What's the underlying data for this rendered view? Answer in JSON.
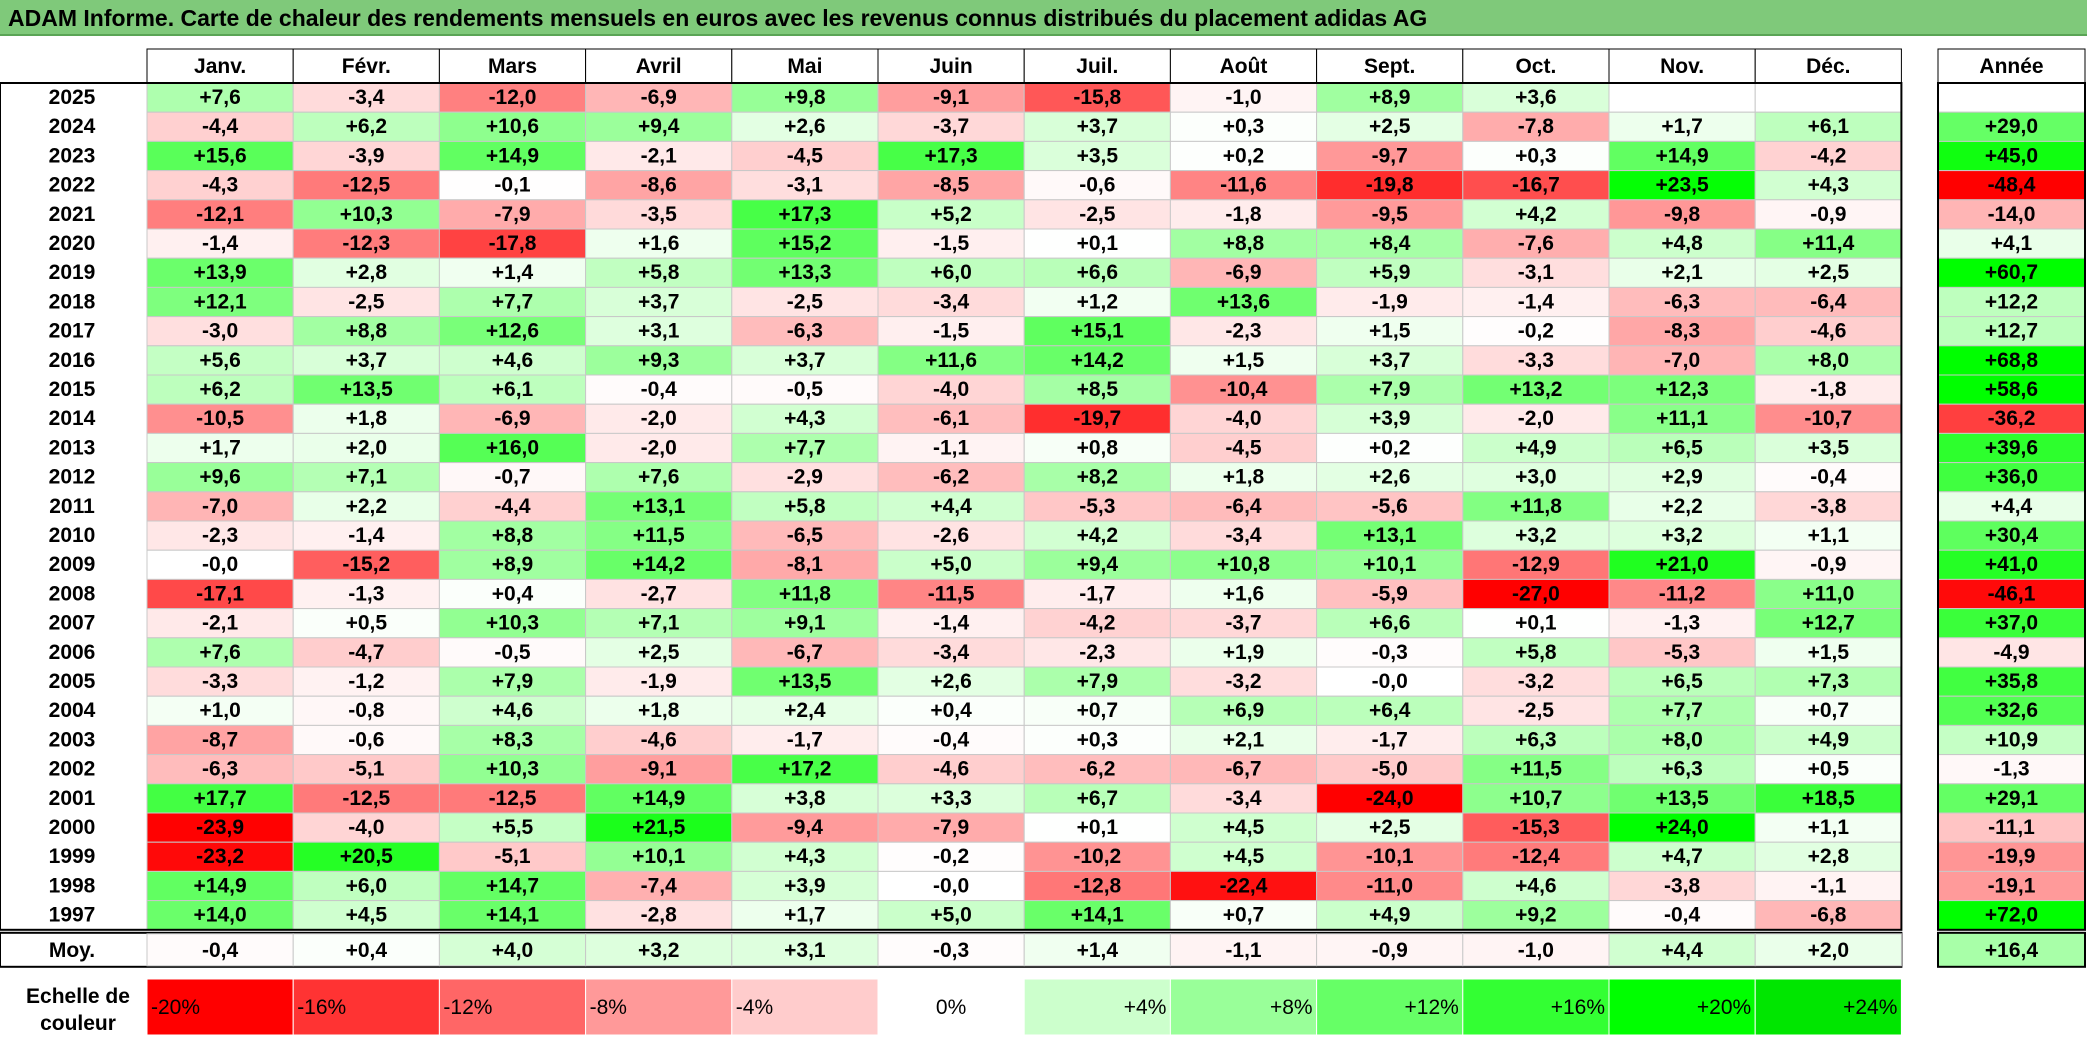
{
  "title": "ADAM Informe. Carte de chaleur des rendements mensuels en euros avec les revenus connus distribués du placement adidas AG",
  "chart_data": {
    "type": "heatmap",
    "title": "ADAM Informe. Carte de chaleur des rendements mensuels en euros avec les revenus connus distribués du placement adidas AG",
    "columns": [
      "Janv.",
      "Févr.",
      "Mars",
      "Avril",
      "Mai",
      "Juin",
      "Juil.",
      "Août",
      "Sept.",
      "Oct.",
      "Nov.",
      "Déc."
    ],
    "year_column_label": "Année",
    "rows": [
      {
        "year": "2025",
        "values": [
          "+7,6",
          "-3,4",
          "-12,0",
          "-6,9",
          "+9,8",
          "-9,1",
          "-15,8",
          "-1,0",
          "+8,9",
          "+3,6",
          "",
          ""
        ],
        "annual": ""
      },
      {
        "year": "2024",
        "values": [
          "-4,4",
          "+6,2",
          "+10,6",
          "+9,4",
          "+2,6",
          "-3,7",
          "+3,7",
          "+0,3",
          "+2,5",
          "-7,8",
          "+1,7",
          "+6,1"
        ],
        "annual": "+29,0"
      },
      {
        "year": "2023",
        "values": [
          "+15,6",
          "-3,9",
          "+14,9",
          "-2,1",
          "-4,5",
          "+17,3",
          "+3,5",
          "+0,2",
          "-9,7",
          "+0,3",
          "+14,9",
          "-4,2"
        ],
        "annual": "+45,0"
      },
      {
        "year": "2022",
        "values": [
          "-4,3",
          "-12,5",
          "-0,1",
          "-8,6",
          "-3,1",
          "-8,5",
          "-0,6",
          "-11,6",
          "-19,8",
          "-16,7",
          "+23,5",
          "+4,3"
        ],
        "annual": "-48,4"
      },
      {
        "year": "2021",
        "values": [
          "-12,1",
          "+10,3",
          "-7,9",
          "-3,5",
          "+17,3",
          "+5,2",
          "-2,5",
          "-1,8",
          "-9,5",
          "+4,2",
          "-9,8",
          "-0,9"
        ],
        "annual": "-14,0"
      },
      {
        "year": "2020",
        "values": [
          "-1,4",
          "-12,3",
          "-17,8",
          "+1,6",
          "+15,2",
          "-1,5",
          "+0,1",
          "+8,8",
          "+8,4",
          "-7,6",
          "+4,8",
          "+11,4"
        ],
        "annual": "+4,1"
      },
      {
        "year": "2019",
        "values": [
          "+13,9",
          "+2,8",
          "+1,4",
          "+5,8",
          "+13,3",
          "+6,0",
          "+6,6",
          "-6,9",
          "+5,9",
          "-3,1",
          "+2,1",
          "+2,5"
        ],
        "annual": "+60,7"
      },
      {
        "year": "2018",
        "values": [
          "+12,1",
          "-2,5",
          "+7,7",
          "+3,7",
          "-2,5",
          "-3,4",
          "+1,2",
          "+13,6",
          "-1,9",
          "-1,4",
          "-6,3",
          "-6,4"
        ],
        "annual": "+12,2"
      },
      {
        "year": "2017",
        "values": [
          "-3,0",
          "+8,8",
          "+12,6",
          "+3,1",
          "-6,3",
          "-1,5",
          "+15,1",
          "-2,3",
          "+1,5",
          "-0,2",
          "-8,3",
          "-4,6"
        ],
        "annual": "+12,7"
      },
      {
        "year": "2016",
        "values": [
          "+5,6",
          "+3,7",
          "+4,6",
          "+9,3",
          "+3,7",
          "+11,6",
          "+14,2",
          "+1,5",
          "+3,7",
          "-3,3",
          "-7,0",
          "+8,0"
        ],
        "annual": "+68,8"
      },
      {
        "year": "2015",
        "values": [
          "+6,2",
          "+13,5",
          "+6,1",
          "-0,4",
          "-0,5",
          "-4,0",
          "+8,5",
          "-10,4",
          "+7,9",
          "+13,2",
          "+12,3",
          "-1,8"
        ],
        "annual": "+58,6"
      },
      {
        "year": "2014",
        "values": [
          "-10,5",
          "+1,8",
          "-6,9",
          "-2,0",
          "+4,3",
          "-6,1",
          "-19,7",
          "-4,0",
          "+3,9",
          "-2,0",
          "+11,1",
          "-10,7"
        ],
        "annual": "-36,2"
      },
      {
        "year": "2013",
        "values": [
          "+1,7",
          "+2,0",
          "+16,0",
          "-2,0",
          "+7,7",
          "-1,1",
          "+0,8",
          "-4,5",
          "+0,2",
          "+4,9",
          "+6,5",
          "+3,5"
        ],
        "annual": "+39,6"
      },
      {
        "year": "2012",
        "values": [
          "+9,6",
          "+7,1",
          "-0,7",
          "+7,6",
          "-2,9",
          "-6,2",
          "+8,2",
          "+1,8",
          "+2,6",
          "+3,0",
          "+2,9",
          "-0,4"
        ],
        "annual": "+36,0"
      },
      {
        "year": "2011",
        "values": [
          "-7,0",
          "+2,2",
          "-4,4",
          "+13,1",
          "+5,8",
          "+4,4",
          "-5,3",
          "-6,4",
          "-5,6",
          "+11,8",
          "+2,2",
          "-3,8"
        ],
        "annual": "+4,4"
      },
      {
        "year": "2010",
        "values": [
          "-2,3",
          "-1,4",
          "+8,8",
          "+11,5",
          "-6,5",
          "-2,6",
          "+4,2",
          "-3,4",
          "+13,1",
          "+3,2",
          "+3,2",
          "+1,1"
        ],
        "annual": "+30,4"
      },
      {
        "year": "2009",
        "values": [
          "-0,0",
          "-15,2",
          "+8,9",
          "+14,2",
          "-8,1",
          "+5,0",
          "+9,4",
          "+10,8",
          "+10,1",
          "-12,9",
          "+21,0",
          "-0,9"
        ],
        "annual": "+41,0"
      },
      {
        "year": "2008",
        "values": [
          "-17,1",
          "-1,3",
          "+0,4",
          "-2,7",
          "+11,8",
          "-11,5",
          "-1,7",
          "+1,6",
          "-5,9",
          "-27,0",
          "-11,2",
          "+11,0"
        ],
        "annual": "-46,1"
      },
      {
        "year": "2007",
        "values": [
          "-2,1",
          "+0,5",
          "+10,3",
          "+7,1",
          "+9,1",
          "-1,4",
          "-4,2",
          "-3,7",
          "+6,6",
          "+0,1",
          "-1,3",
          "+12,7"
        ],
        "annual": "+37,0"
      },
      {
        "year": "2006",
        "values": [
          "+7,6",
          "-4,7",
          "-0,5",
          "+2,5",
          "-6,7",
          "-3,4",
          "-2,3",
          "+1,9",
          "-0,3",
          "+5,8",
          "-5,3",
          "+1,5"
        ],
        "annual": "-4,9"
      },
      {
        "year": "2005",
        "values": [
          "-3,3",
          "-1,2",
          "+7,9",
          "-1,9",
          "+13,5",
          "+2,6",
          "+7,9",
          "-3,2",
          "-0,0",
          "-3,2",
          "+6,5",
          "+7,3"
        ],
        "annual": "+35,8"
      },
      {
        "year": "2004",
        "values": [
          "+1,0",
          "-0,8",
          "+4,6",
          "+1,8",
          "+2,4",
          "+0,4",
          "+0,7",
          "+6,9",
          "+6,4",
          "-2,5",
          "+7,7",
          "+0,7"
        ],
        "annual": "+32,6"
      },
      {
        "year": "2003",
        "values": [
          "-8,7",
          "-0,6",
          "+8,3",
          "-4,6",
          "-1,7",
          "-0,4",
          "+0,3",
          "+2,1",
          "-1,7",
          "+6,3",
          "+8,0",
          "+4,9"
        ],
        "annual": "+10,9"
      },
      {
        "year": "2002",
        "values": [
          "-6,3",
          "-5,1",
          "+10,3",
          "-9,1",
          "+17,2",
          "-4,6",
          "-6,2",
          "-6,7",
          "-5,0",
          "+11,5",
          "+6,3",
          "+0,5"
        ],
        "annual": "-1,3"
      },
      {
        "year": "2001",
        "values": [
          "+17,7",
          "-12,5",
          "-12,5",
          "+14,9",
          "+3,8",
          "+3,3",
          "+6,7",
          "-3,4",
          "-24,0",
          "+10,7",
          "+13,5",
          "+18,5"
        ],
        "annual": "+29,1"
      },
      {
        "year": "2000",
        "values": [
          "-23,9",
          "-4,0",
          "+5,5",
          "+21,5",
          "-9,4",
          "-7,9",
          "+0,1",
          "+4,5",
          "+2,5",
          "-15,3",
          "+24,0",
          "+1,1"
        ],
        "annual": "-11,1"
      },
      {
        "year": "1999",
        "values": [
          "-23,2",
          "+20,5",
          "-5,1",
          "+10,1",
          "+4,3",
          "-0,2",
          "-10,2",
          "+4,5",
          "-10,1",
          "-12,4",
          "+4,7",
          "+2,8"
        ],
        "annual": "-19,9"
      },
      {
        "year": "1998",
        "values": [
          "+14,9",
          "+6,0",
          "+14,7",
          "-7,4",
          "+3,9",
          "-0,0",
          "-12,8",
          "-22,4",
          "-11,0",
          "+4,6",
          "-3,8",
          "-1,1"
        ],
        "annual": "-19,1"
      },
      {
        "year": "1997",
        "values": [
          "+14,0",
          "+4,5",
          "+14,1",
          "-2,8",
          "+1,7",
          "+5,0",
          "+14,1",
          "+0,7",
          "+4,9",
          "+9,2",
          "-0,4",
          "-6,8"
        ],
        "annual": "+72,0"
      }
    ],
    "average": {
      "label": "Moy.",
      "values": [
        "-0,4",
        "+0,4",
        "+4,0",
        "+3,2",
        "+3,1",
        "-0,3",
        "+1,4",
        "-1,1",
        "-0,9",
        "-1,0",
        "+4,4",
        "+2,0"
      ],
      "annual": "+16,4"
    },
    "legend": {
      "label_line1": "Echelle de",
      "label_line2": "couleur",
      "stops": [
        {
          "label": "-20%",
          "color": "#ff0000"
        },
        {
          "label": "-16%",
          "color": "#ff3333"
        },
        {
          "label": "-12%",
          "color": "#ff6666"
        },
        {
          "label": "-8%",
          "color": "#ff9999"
        },
        {
          "label": "-4%",
          "color": "#ffcccc"
        },
        {
          "label": "0%",
          "color": "#ffffff"
        },
        {
          "label": "+4%",
          "color": "#ccffcc"
        },
        {
          "label": "+8%",
          "color": "#99ff99"
        },
        {
          "label": "+12%",
          "color": "#66ff66"
        },
        {
          "label": "+16%",
          "color": "#33ff33"
        },
        {
          "label": "+20%",
          "color": "#00ff00"
        },
        {
          "label": "+24%",
          "color": "#00e600"
        }
      ]
    },
    "colors": {
      "title_bar": "#7fc97a",
      "negative_max": "#ff0000",
      "neutral": "#ffffff",
      "positive_max": "#00ff00"
    }
  }
}
